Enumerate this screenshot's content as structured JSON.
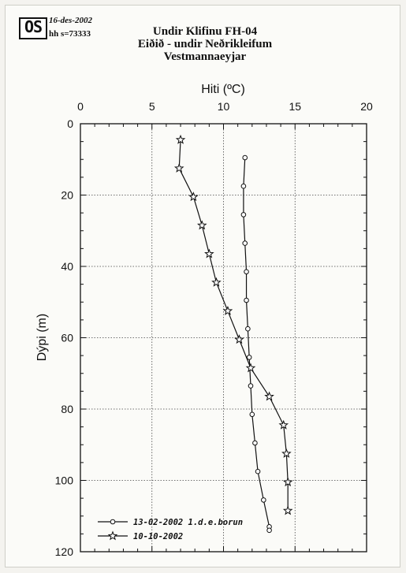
{
  "header": {
    "logo_text": "OS",
    "date": "16-des-2002",
    "hh": "hh s=73333",
    "title_lines": [
      "Undir Klifinu  FH-04",
      "Eiðið - undir Neðrikleifum",
      "Vestmannaeyjar"
    ]
  },
  "chart_data": {
    "type": "line",
    "title": "Undir Klifinu  FH-04",
    "subtitle": "Eiðið - undir Neðrikleifum / Vestmannaeyjar",
    "xlabel": "Hiti (ºC)",
    "ylabel": "Dýpi (m)",
    "xlim": [
      0,
      20
    ],
    "ylim": [
      120,
      0
    ],
    "x_axis_position": "top",
    "y_inverted": true,
    "x_ticks": [
      0,
      5,
      10,
      15,
      20
    ],
    "y_ticks": [
      0,
      20,
      40,
      60,
      80,
      100,
      120
    ],
    "grid": true,
    "legend_position": "bottom-left",
    "series": [
      {
        "name": "13-02-2002 1.d.e.borun",
        "marker": "circle",
        "points": [
          {
            "x": 11.5,
            "y": 9.5
          },
          {
            "x": 11.4,
            "y": 17.5
          },
          {
            "x": 11.4,
            "y": 25.5
          },
          {
            "x": 11.5,
            "y": 33.5
          },
          {
            "x": 11.6,
            "y": 41.5
          },
          {
            "x": 11.6,
            "y": 49.5
          },
          {
            "x": 11.7,
            "y": 57.5
          },
          {
            "x": 11.8,
            "y": 65.5
          },
          {
            "x": 11.9,
            "y": 73.5
          },
          {
            "x": 12.0,
            "y": 81.5
          },
          {
            "x": 12.2,
            "y": 89.5
          },
          {
            "x": 12.4,
            "y": 97.5
          },
          {
            "x": 12.8,
            "y": 105.5
          },
          {
            "x": 13.2,
            "y": 113.0
          },
          {
            "x": 13.2,
            "y": 114.0
          }
        ]
      },
      {
        "name": "10-10-2002",
        "marker": "star",
        "points": [
          {
            "x": 7.0,
            "y": 4.5
          },
          {
            "x": 6.9,
            "y": 12.5
          },
          {
            "x": 7.9,
            "y": 20.5
          },
          {
            "x": 8.5,
            "y": 28.5
          },
          {
            "x": 9.0,
            "y": 36.5
          },
          {
            "x": 9.5,
            "y": 44.5
          },
          {
            "x": 10.3,
            "y": 52.5
          },
          {
            "x": 11.1,
            "y": 60.5
          },
          {
            "x": 11.9,
            "y": 68.5
          },
          {
            "x": 13.2,
            "y": 76.5
          },
          {
            "x": 14.2,
            "y": 84.5
          },
          {
            "x": 14.4,
            "y": 92.5
          },
          {
            "x": 14.5,
            "y": 100.5
          },
          {
            "x": 14.5,
            "y": 108.5
          }
        ]
      }
    ]
  }
}
